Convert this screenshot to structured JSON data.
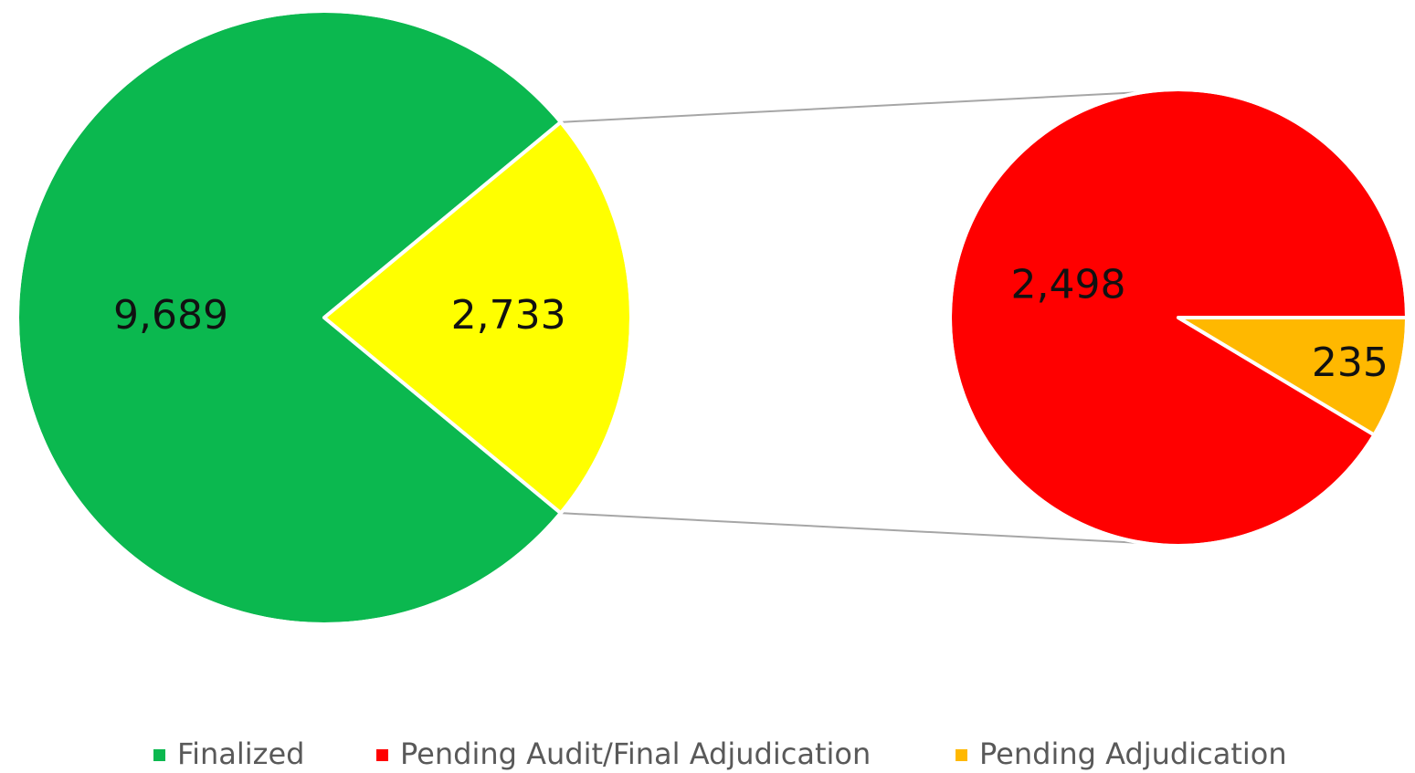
{
  "chart_data": {
    "type": "pie",
    "categories": [
      "Finalized",
      null
    ],
    "values": [
      9689,
      2733
    ],
    "value_labels": [
      "9,689",
      "2,733"
    ],
    "colors": [
      "#0bb84f",
      "#ffff00"
    ],
    "breakout": {
      "categories": [
        "Pending Audit/Final Adjudication",
        "Pending Adjudication"
      ],
      "values": [
        2498,
        235
      ],
      "value_labels": [
        "2,498",
        "235"
      ],
      "colors": [
        "#ff0000",
        "#ffb800"
      ]
    }
  }
}
